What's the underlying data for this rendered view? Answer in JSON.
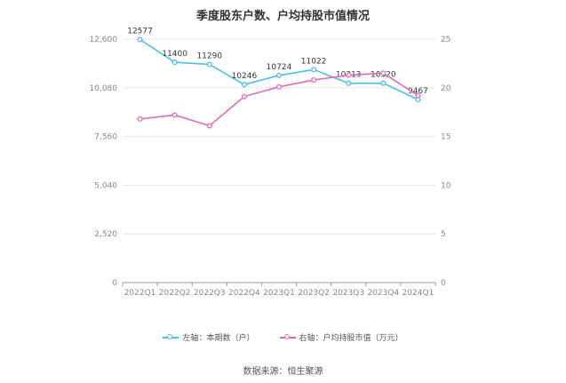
{
  "title": "季度股东户数、户均持股市值情况",
  "source": "数据来源：恒生聚源",
  "colors": {
    "left_series": "#4dbdea",
    "right_series": "#e06bb4",
    "grid": "#e6e6e6",
    "axis_text": "#888888"
  },
  "chart_data": {
    "type": "line",
    "title": "季度股东户数、户均持股市值情况",
    "categories": [
      "2022Q1",
      "2022Q2",
      "2022Q3",
      "2022Q4",
      "2023Q1",
      "2023Q2",
      "2023Q3",
      "2023Q4",
      "2024Q1"
    ],
    "left_axis": {
      "ylim": [
        0,
        12600
      ],
      "ticks": [
        "0",
        "2,520",
        "5,040",
        "7,560",
        "10,080",
        "12,600"
      ]
    },
    "right_axis": {
      "ylim": [
        0,
        25
      ],
      "ticks": [
        "0",
        "5",
        "10",
        "15",
        "20",
        "25"
      ]
    },
    "series": [
      {
        "name": "左轴：本期数（户）",
        "axis": "left",
        "values": [
          12577,
          11400,
          11290,
          10246,
          10724,
          11022,
          10313,
          10320,
          9467
        ],
        "labels": [
          "12577",
          "11400",
          "11290",
          "10246",
          "10724",
          "11022",
          "10313",
          "10320",
          "9467"
        ]
      },
      {
        "name": "右轴：户均持股市值（万元）",
        "axis": "right",
        "values": [
          16.8,
          17.2,
          16.1,
          19.1,
          20.1,
          20.8,
          21.3,
          21.5,
          19.2
        ]
      }
    ],
    "grid": true,
    "legend": "bottom-center"
  }
}
